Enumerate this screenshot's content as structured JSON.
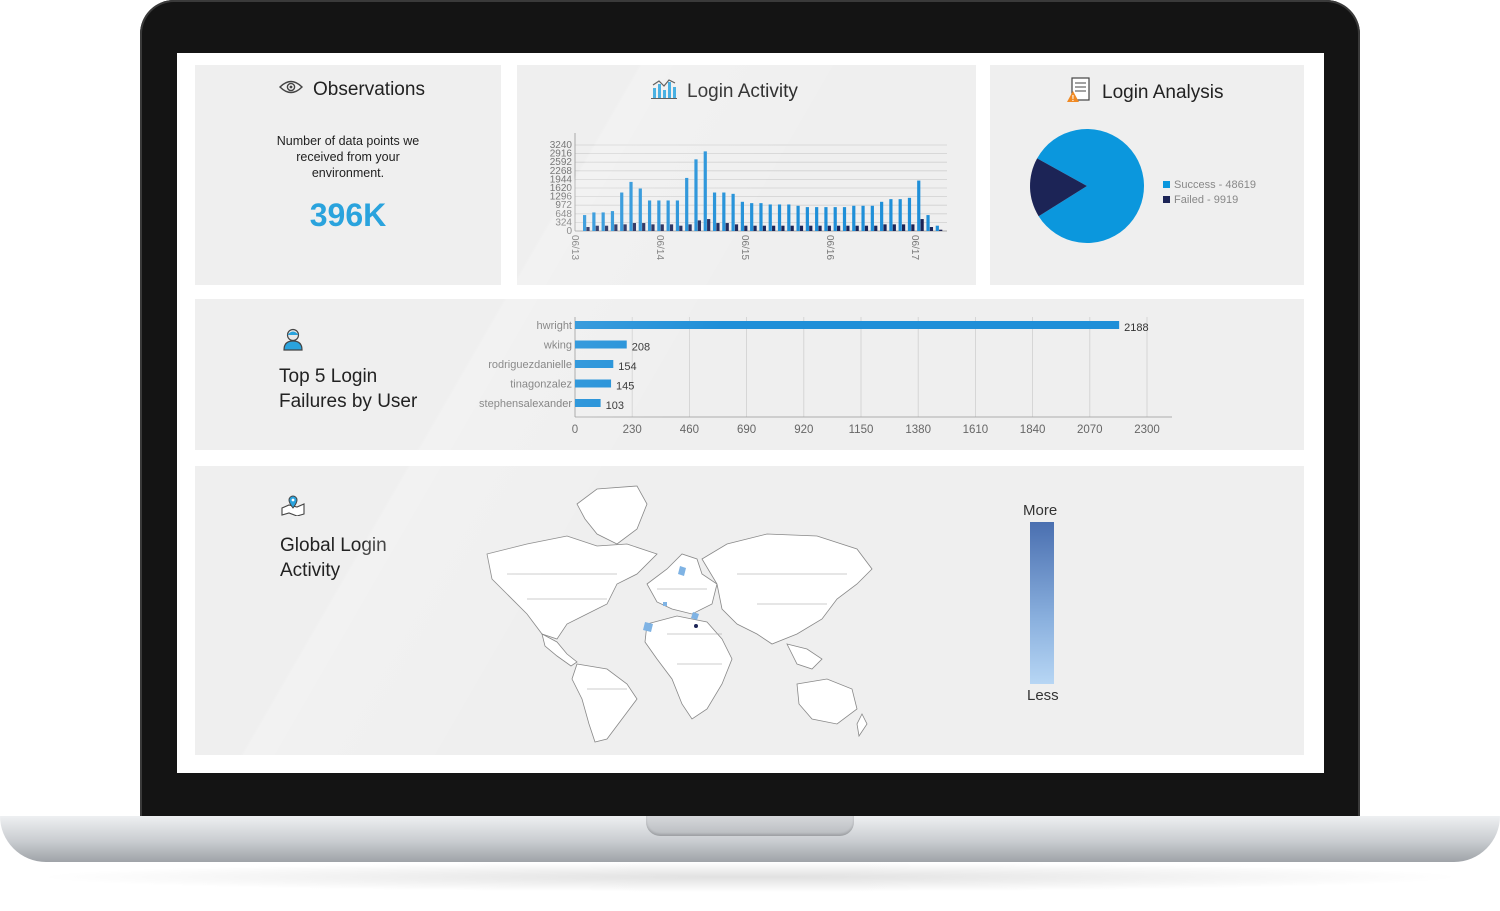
{
  "observations": {
    "title": "Observations",
    "description": "Number of data points we received from your environment.",
    "value": "396K",
    "icon": "eye-icon"
  },
  "login_activity": {
    "title": "Login Activity",
    "icon": "bar-chart-icon"
  },
  "login_analysis": {
    "title": "Login Analysis",
    "icon": "report-warning-icon"
  },
  "top5": {
    "title_line1": "Top 5 Login",
    "title_line2": "Failures by User",
    "icon": "user-icon"
  },
  "global": {
    "title_line1": "Global Login",
    "title_line2": "Activity",
    "icon": "map-pin-icon",
    "legend_more": "More",
    "legend_less": "Less"
  },
  "colors": {
    "accent": "#2aa3dd",
    "bar_light": "#1f8fd8",
    "bar_dark": "#1c2456",
    "pie_success": "#0b97dd",
    "pie_failed": "#1c2456"
  },
  "chart_data": [
    {
      "type": "bar",
      "title": "Login Activity",
      "y_ticks": [
        "0",
        "324",
        "648",
        "972",
        "1296",
        "1620",
        "1944",
        "2268",
        "2592",
        "2916",
        "3240"
      ],
      "x_tick_labels": [
        "06/13",
        "06/14",
        "06/15",
        "06/16",
        "06/17"
      ],
      "series": [
        {
          "values": [
            600,
            700,
            700,
            750,
            1450,
            1850,
            1600,
            1150,
            1150,
            1150,
            1150,
            2000,
            2700,
            3000,
            1450,
            1450,
            1400,
            1100,
            1050,
            1050,
            1000,
            1000,
            1000,
            950,
            900,
            900,
            900,
            900,
            900,
            950,
            950,
            950,
            1100,
            1200,
            1200,
            1250,
            1900,
            600,
            200
          ]
        },
        {
          "values": [
            150,
            200,
            200,
            250,
            250,
            300,
            300,
            250,
            250,
            250,
            200,
            250,
            400,
            450,
            300,
            300,
            250,
            200,
            200,
            200,
            200,
            200,
            200,
            200,
            200,
            200,
            200,
            200,
            200,
            200,
            200,
            200,
            250,
            250,
            250,
            250,
            450,
            150,
            50
          ]
        }
      ],
      "ylim": [
        0,
        3240
      ]
    },
    {
      "type": "pie",
      "title": "Login Analysis",
      "labels": [
        "Success - 48619",
        "Failed - 9919"
      ],
      "values": [
        48619,
        9919
      ]
    },
    {
      "type": "bar",
      "orientation": "horizontal",
      "title": "Top 5 Login Failures by User",
      "categories": [
        "hwright",
        "wking",
        "rodriguezdanielle",
        "tinagonzalez",
        "stephensalexander"
      ],
      "values": [
        2188,
        208,
        154,
        145,
        103
      ],
      "x_ticks": [
        "0",
        "230",
        "460",
        "690",
        "920",
        "1150",
        "1380",
        "1610",
        "1840",
        "2070",
        "2300"
      ],
      "xlim": [
        0,
        2300
      ]
    }
  ]
}
